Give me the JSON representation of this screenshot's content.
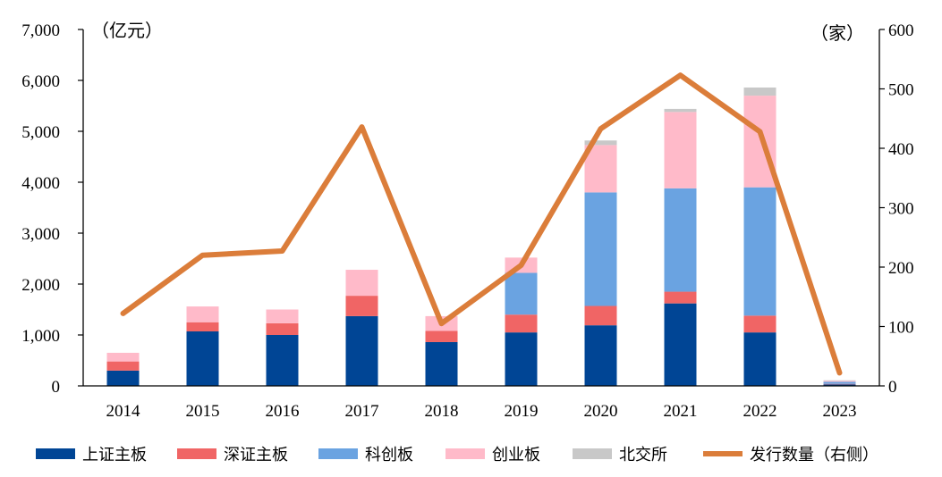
{
  "chart_data": {
    "type": "bar",
    "stacked": true,
    "categories": [
      "2014",
      "2015",
      "2016",
      "2017",
      "2018",
      "2019",
      "2020",
      "2021",
      "2022",
      "2023"
    ],
    "series": [
      {
        "name": "上证主板",
        "color": "#004595",
        "values": [
          300,
          1070,
          1000,
          1370,
          860,
          1050,
          1190,
          1620,
          1050,
          30
        ]
      },
      {
        "name": "深证主板",
        "color": "#f06565",
        "values": [
          180,
          180,
          230,
          400,
          220,
          350,
          380,
          230,
          330,
          10
        ]
      },
      {
        "name": "科创板",
        "color": "#6aa3e1",
        "values": [
          0,
          0,
          0,
          0,
          0,
          820,
          2230,
          2030,
          2520,
          40
        ]
      },
      {
        "name": "创业板",
        "color": "#ffbac9",
        "values": [
          170,
          310,
          270,
          510,
          290,
          300,
          930,
          1500,
          1800,
          20
        ]
      },
      {
        "name": "北交所",
        "color": "#c8c8c8",
        "values": [
          0,
          0,
          0,
          0,
          0,
          0,
          90,
          60,
          160,
          10
        ]
      }
    ],
    "line": {
      "name": "发行数量（右侧）",
      "color": "#db7d3a",
      "values": [
        122,
        220,
        227,
        436,
        105,
        203,
        433,
        523,
        428,
        22
      ]
    },
    "ylim": [
      0,
      7000
    ],
    "y2lim": [
      0,
      600
    ],
    "yticks": [
      "0",
      "1,000",
      "2,000",
      "3,000",
      "4,000",
      "5,000",
      "6,000",
      "7,000"
    ],
    "y2ticks": [
      "0",
      "100",
      "200",
      "300",
      "400",
      "500",
      "600"
    ],
    "ylabel": "（亿元）",
    "y2label": "（家）",
    "legend_position": "bottom"
  }
}
